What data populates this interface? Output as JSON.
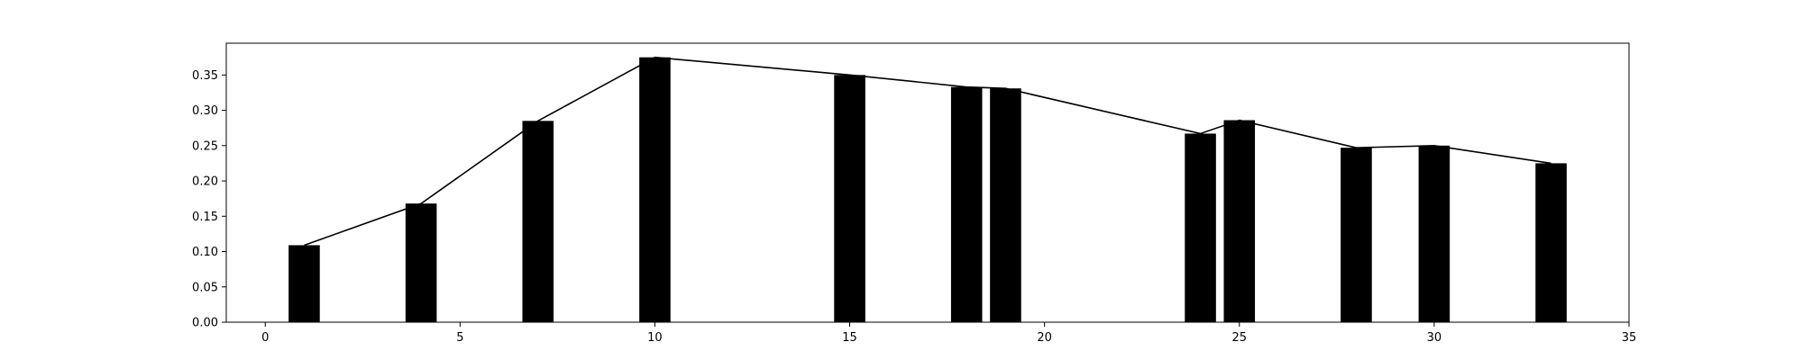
{
  "chart_data": {
    "type": "bar",
    "bar_color": "#000000",
    "line_color": "#000000",
    "grid": false,
    "xlim": [
      -1,
      35
    ],
    "ylim": [
      0,
      0.395
    ],
    "x_ticks": [
      0,
      5,
      10,
      15,
      20,
      25,
      30,
      35
    ],
    "x_tick_labels": [
      "0",
      "5",
      "10",
      "15",
      "20",
      "25",
      "30",
      "35"
    ],
    "y_ticks": [
      0,
      0.05,
      0.1,
      0.15,
      0.2,
      0.25,
      0.3,
      0.35
    ],
    "y_tick_labels": [
      "0.00",
      "0.05",
      "0.10",
      "0.15",
      "0.20",
      "0.25",
      "0.30",
      "0.35"
    ],
    "bar_width": 0.8,
    "x": [
      1,
      4,
      7,
      10,
      15,
      18,
      19,
      24,
      25,
      28,
      30,
      33
    ],
    "values": [
      0.109,
      0.168,
      0.285,
      0.375,
      0.35,
      0.333,
      0.331,
      0.267,
      0.286,
      0.247,
      0.25,
      0.225
    ]
  }
}
